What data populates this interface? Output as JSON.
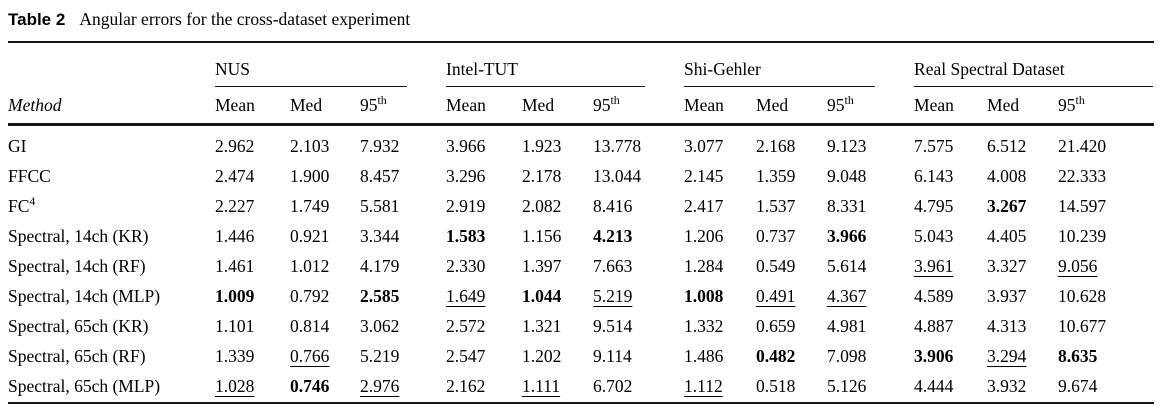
{
  "caption": {
    "label": "Table 2",
    "text": "Angular errors for the cross-dataset experiment"
  },
  "table": {
    "method_header": "Method",
    "groups": [
      {
        "name": "NUS"
      },
      {
        "name": "Intel-TUT"
      },
      {
        "name": "Shi-Gehler"
      },
      {
        "name": "Real Spectral Dataset"
      }
    ],
    "subcolumns": [
      {
        "base": "Mean",
        "sup": ""
      },
      {
        "base": "Med",
        "sup": ""
      },
      {
        "base": "95",
        "sup": "th"
      }
    ],
    "rows": [
      {
        "method": "GI",
        "method_sup": "",
        "values": [
          {
            "v": "2.962",
            "em": ""
          },
          {
            "v": "2.103",
            "em": ""
          },
          {
            "v": "7.932",
            "em": ""
          },
          {
            "v": "3.966",
            "em": ""
          },
          {
            "v": "1.923",
            "em": ""
          },
          {
            "v": "13.778",
            "em": ""
          },
          {
            "v": "3.077",
            "em": ""
          },
          {
            "v": "2.168",
            "em": ""
          },
          {
            "v": "9.123",
            "em": ""
          },
          {
            "v": "7.575",
            "em": ""
          },
          {
            "v": "6.512",
            "em": ""
          },
          {
            "v": "21.420",
            "em": ""
          }
        ]
      },
      {
        "method": "FFCC",
        "method_sup": "",
        "values": [
          {
            "v": "2.474",
            "em": ""
          },
          {
            "v": "1.900",
            "em": ""
          },
          {
            "v": "8.457",
            "em": ""
          },
          {
            "v": "3.296",
            "em": ""
          },
          {
            "v": "2.178",
            "em": ""
          },
          {
            "v": "13.044",
            "em": ""
          },
          {
            "v": "2.145",
            "em": ""
          },
          {
            "v": "1.359",
            "em": ""
          },
          {
            "v": "9.048",
            "em": ""
          },
          {
            "v": "6.143",
            "em": ""
          },
          {
            "v": "4.008",
            "em": ""
          },
          {
            "v": "22.333",
            "em": ""
          }
        ]
      },
      {
        "method": "FC",
        "method_sup": "4",
        "values": [
          {
            "v": "2.227",
            "em": ""
          },
          {
            "v": "1.749",
            "em": ""
          },
          {
            "v": "5.581",
            "em": ""
          },
          {
            "v": "2.919",
            "em": ""
          },
          {
            "v": "2.082",
            "em": ""
          },
          {
            "v": "8.416",
            "em": ""
          },
          {
            "v": "2.417",
            "em": ""
          },
          {
            "v": "1.537",
            "em": ""
          },
          {
            "v": "8.331",
            "em": ""
          },
          {
            "v": "4.795",
            "em": ""
          },
          {
            "v": "3.267",
            "em": "b"
          },
          {
            "v": "14.597",
            "em": ""
          }
        ]
      },
      {
        "method": "Spectral, 14ch (KR)",
        "method_sup": "",
        "values": [
          {
            "v": "1.446",
            "em": ""
          },
          {
            "v": "0.921",
            "em": ""
          },
          {
            "v": "3.344",
            "em": ""
          },
          {
            "v": "1.583",
            "em": "b"
          },
          {
            "v": "1.156",
            "em": ""
          },
          {
            "v": "4.213",
            "em": "b"
          },
          {
            "v": "1.206",
            "em": ""
          },
          {
            "v": "0.737",
            "em": ""
          },
          {
            "v": "3.966",
            "em": "b"
          },
          {
            "v": "5.043",
            "em": ""
          },
          {
            "v": "4.405",
            "em": ""
          },
          {
            "v": "10.239",
            "em": ""
          }
        ]
      },
      {
        "method": "Spectral, 14ch (RF)",
        "method_sup": "",
        "values": [
          {
            "v": "1.461",
            "em": ""
          },
          {
            "v": "1.012",
            "em": ""
          },
          {
            "v": "4.179",
            "em": ""
          },
          {
            "v": "2.330",
            "em": ""
          },
          {
            "v": "1.397",
            "em": ""
          },
          {
            "v": "7.663",
            "em": ""
          },
          {
            "v": "1.284",
            "em": ""
          },
          {
            "v": "0.549",
            "em": ""
          },
          {
            "v": "5.614",
            "em": ""
          },
          {
            "v": "3.961",
            "em": "u"
          },
          {
            "v": "3.327",
            "em": ""
          },
          {
            "v": "9.056",
            "em": "u"
          }
        ]
      },
      {
        "method": "Spectral, 14ch (MLP)",
        "method_sup": "",
        "values": [
          {
            "v": "1.009",
            "em": "b"
          },
          {
            "v": "0.792",
            "em": ""
          },
          {
            "v": "2.585",
            "em": "b"
          },
          {
            "v": "1.649",
            "em": "u"
          },
          {
            "v": "1.044",
            "em": "b"
          },
          {
            "v": "5.219",
            "em": "u"
          },
          {
            "v": "1.008",
            "em": "b"
          },
          {
            "v": "0.491",
            "em": "u"
          },
          {
            "v": "4.367",
            "em": "u"
          },
          {
            "v": "4.589",
            "em": ""
          },
          {
            "v": "3.937",
            "em": ""
          },
          {
            "v": "10.628",
            "em": ""
          }
        ]
      },
      {
        "method": "Spectral, 65ch (KR)",
        "method_sup": "",
        "values": [
          {
            "v": "1.101",
            "em": ""
          },
          {
            "v": "0.814",
            "em": ""
          },
          {
            "v": "3.062",
            "em": ""
          },
          {
            "v": "2.572",
            "em": ""
          },
          {
            "v": "1.321",
            "em": ""
          },
          {
            "v": "9.514",
            "em": ""
          },
          {
            "v": "1.332",
            "em": ""
          },
          {
            "v": "0.659",
            "em": ""
          },
          {
            "v": "4.981",
            "em": ""
          },
          {
            "v": "4.887",
            "em": ""
          },
          {
            "v": "4.313",
            "em": ""
          },
          {
            "v": "10.677",
            "em": ""
          }
        ]
      },
      {
        "method": "Spectral, 65ch (RF)",
        "method_sup": "",
        "values": [
          {
            "v": "1.339",
            "em": ""
          },
          {
            "v": "0.766",
            "em": "u"
          },
          {
            "v": "5.219",
            "em": ""
          },
          {
            "v": "2.547",
            "em": ""
          },
          {
            "v": "1.202",
            "em": ""
          },
          {
            "v": "9.114",
            "em": ""
          },
          {
            "v": "1.486",
            "em": ""
          },
          {
            "v": "0.482",
            "em": "b"
          },
          {
            "v": "7.098",
            "em": ""
          },
          {
            "v": "3.906",
            "em": "b"
          },
          {
            "v": "3.294",
            "em": "u"
          },
          {
            "v": "8.635",
            "em": "b"
          }
        ]
      },
      {
        "method": "Spectral, 65ch (MLP)",
        "method_sup": "",
        "values": [
          {
            "v": "1.028",
            "em": "u"
          },
          {
            "v": "0.746",
            "em": "b"
          },
          {
            "v": "2.976",
            "em": "u"
          },
          {
            "v": "2.162",
            "em": ""
          },
          {
            "v": "1.111",
            "em": "u"
          },
          {
            "v": "6.702",
            "em": ""
          },
          {
            "v": "1.112",
            "em": "u"
          },
          {
            "v": "0.518",
            "em": ""
          },
          {
            "v": "5.126",
            "em": ""
          },
          {
            "v": "4.444",
            "em": ""
          },
          {
            "v": "3.932",
            "em": ""
          },
          {
            "v": "9.674",
            "em": ""
          }
        ]
      }
    ]
  }
}
